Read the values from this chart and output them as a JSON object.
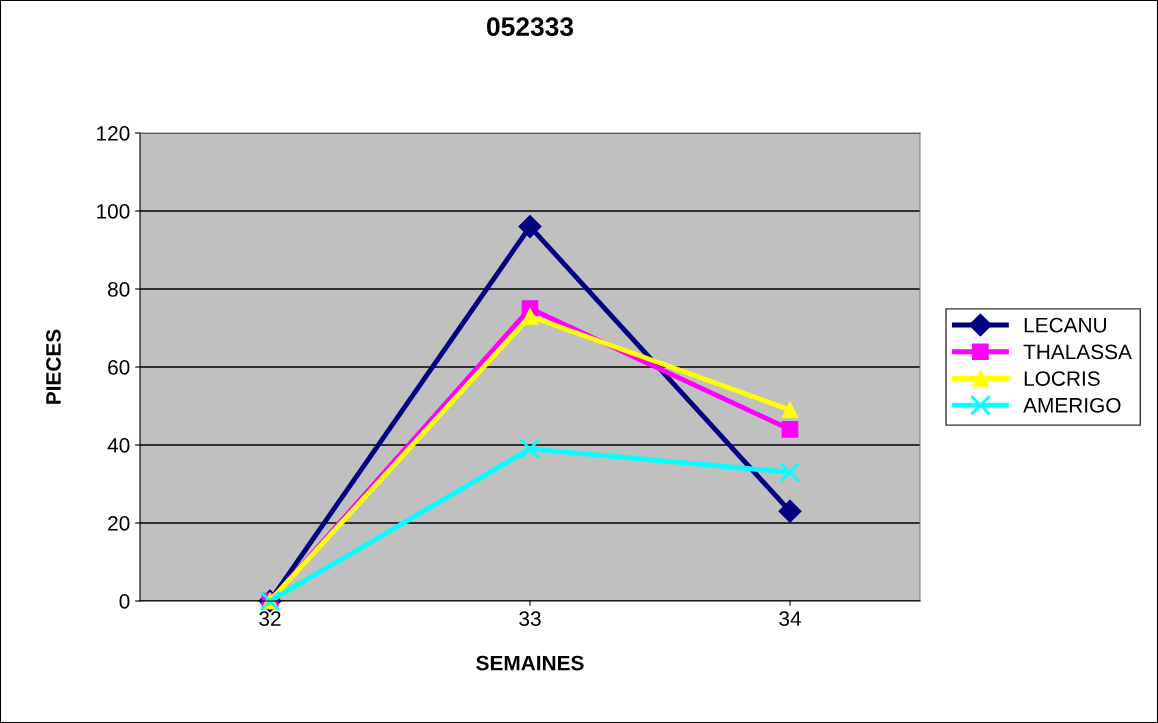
{
  "chart_data": {
    "type": "line",
    "title": "052333",
    "xlabel": "SEMAINES",
    "ylabel": "PIECES",
    "categories": [
      "32",
      "33",
      "34"
    ],
    "series": [
      {
        "name": "LECANU",
        "color": "#000080",
        "marker": "diamond",
        "values": [
          0,
          96,
          23
        ]
      },
      {
        "name": "THALASSA",
        "color": "#ff00ff",
        "marker": "square",
        "values": [
          0,
          75,
          44
        ]
      },
      {
        "name": "LOCRIS",
        "color": "#ffff00",
        "marker": "triangle",
        "values": [
          0,
          73,
          49
        ]
      },
      {
        "name": "AMERIGO",
        "color": "#00ffff",
        "marker": "cross",
        "values": [
          0,
          39,
          33
        ]
      }
    ],
    "ylim": [
      0,
      120
    ],
    "yticks": [
      0,
      20,
      40,
      60,
      80,
      100,
      120
    ],
    "grid": "y",
    "legend": "right"
  }
}
